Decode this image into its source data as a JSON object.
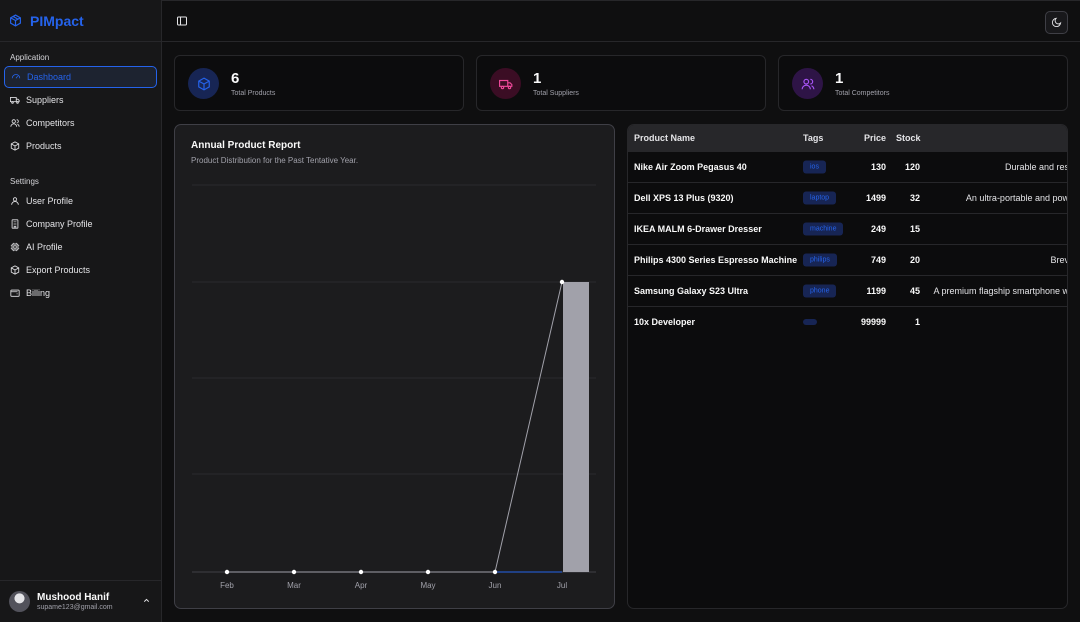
{
  "brand": {
    "name": "PIMpact",
    "color": "#2563eb"
  },
  "sidebar": {
    "application_label": "Application",
    "application_items": [
      {
        "label": "Dashboard",
        "icon": "dashboard-icon",
        "active": true
      },
      {
        "label": "Suppliers",
        "icon": "truck-icon"
      },
      {
        "label": "Competitors",
        "icon": "users-icon"
      },
      {
        "label": "Products",
        "icon": "box-icon"
      }
    ],
    "settings_label": "Settings",
    "settings_items": [
      {
        "label": "User Profile",
        "icon": "user-icon"
      },
      {
        "label": "Company Profile",
        "icon": "building-icon"
      },
      {
        "label": "AI Profile",
        "icon": "cpu-icon"
      },
      {
        "label": "Export Products",
        "icon": "box-export-icon"
      },
      {
        "label": "Billing",
        "icon": "wallet-icon"
      }
    ]
  },
  "user": {
    "name": "Mushood Hanif",
    "email": "supame123@gmail.com"
  },
  "stats": [
    {
      "value": "6",
      "label": "Total Products",
      "icon": "box-icon",
      "color": "#2563eb"
    },
    {
      "value": "1",
      "label": "Total Suppliers",
      "icon": "truck-icon",
      "color": "#ec4899"
    },
    {
      "value": "1",
      "label": "Total Competitors",
      "icon": "users-icon",
      "color": "#a855f7"
    }
  ],
  "chart": {
    "title": "Annual Product Report",
    "subtitle": "Product Distribution for the Past Tentative Year."
  },
  "chart_data": {
    "type": "bar",
    "categories": [
      "Feb",
      "Mar",
      "Apr",
      "May",
      "Jun",
      "Jul"
    ],
    "series": [
      {
        "type": "bar",
        "values": [
          0,
          0,
          0,
          0,
          0,
          6
        ]
      },
      {
        "type": "line",
        "values": [
          0,
          0,
          0,
          0,
          0,
          6
        ]
      }
    ],
    "ylim": [
      0,
      6
    ],
    "grid": true
  },
  "table": {
    "headers": {
      "name": "Product Name",
      "tags": "Tags",
      "price": "Price",
      "stock": "Stock"
    },
    "rows": [
      {
        "name": "Nike Air Zoom Pegasus 40",
        "tag": "ios",
        "price": "130",
        "stock": "120",
        "desc": "Durable and res"
      },
      {
        "name": "Dell XPS 13 Plus (9320)",
        "tag": "laptop",
        "price": "1499",
        "stock": "32",
        "desc": "An ultra-portable and pow"
      },
      {
        "name": "IKEA MALM 6-Drawer Dresser",
        "tag": "machine",
        "price": "249",
        "stock": "15",
        "desc": ""
      },
      {
        "name": "Philips 4300 Series Espresso Machine",
        "tag": "philips",
        "price": "749",
        "stock": "20",
        "desc": "Brev"
      },
      {
        "name": "Samsung Galaxy S23 Ultra",
        "tag": "phone",
        "price": "1199",
        "stock": "45",
        "desc": "A premium flagship smartphone w"
      },
      {
        "name": "10x Developer",
        "tag": "",
        "price": "99999",
        "stock": "1",
        "desc": ""
      }
    ]
  }
}
